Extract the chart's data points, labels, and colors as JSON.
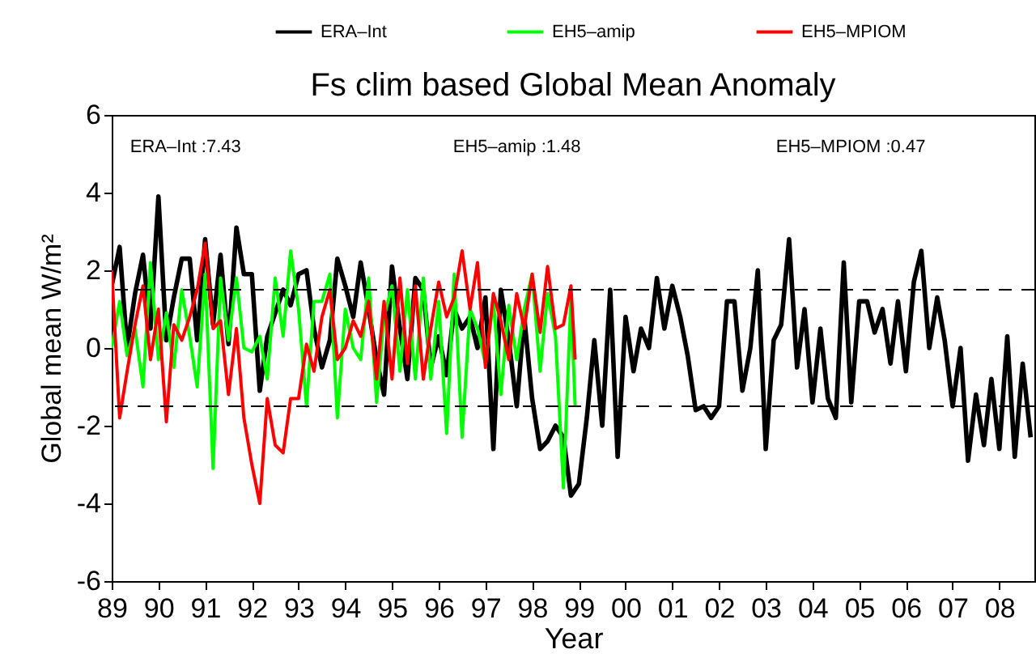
{
  "chart_data": {
    "type": "line",
    "title": "Fs clim based Global Mean Anomaly",
    "xlabel": "Year",
    "ylabel": "Global mean W/m²",
    "annotations": [
      "ERA–Int :7.43",
      "EH5–amip :1.48",
      "EH5–MPIOM :0.47"
    ],
    "xlim": [
      1989,
      2008.75
    ],
    "ylim": [
      -6,
      6
    ],
    "xticks": [
      {
        "value": 1989,
        "label": "89"
      },
      {
        "value": 1990,
        "label": "90"
      },
      {
        "value": 1991,
        "label": "91"
      },
      {
        "value": 1992,
        "label": "92"
      },
      {
        "value": 1993,
        "label": "93"
      },
      {
        "value": 1994,
        "label": "94"
      },
      {
        "value": 1995,
        "label": "95"
      },
      {
        "value": 1996,
        "label": "96"
      },
      {
        "value": 1997,
        "label": "97"
      },
      {
        "value": 1998,
        "label": "98"
      },
      {
        "value": 1999,
        "label": "99"
      },
      {
        "value": 2000,
        "label": "00"
      },
      {
        "value": 2001,
        "label": "01"
      },
      {
        "value": 2002,
        "label": "02"
      },
      {
        "value": 2003,
        "label": "03"
      },
      {
        "value": 2004,
        "label": "04"
      },
      {
        "value": 2005,
        "label": "05"
      },
      {
        "value": 2006,
        "label": "06"
      },
      {
        "value": 2007,
        "label": "07"
      },
      {
        "value": 2008,
        "label": "08"
      }
    ],
    "yticks": [
      -6,
      -4,
      -2,
      0,
      2,
      4,
      6
    ],
    "grid": false,
    "legend": "top",
    "marker": "none",
    "line_style": "solid",
    "ref_lines": [
      {
        "axis": "y",
        "value": 1.5,
        "color": "#000000",
        "line_style": "dashed"
      },
      {
        "axis": "y",
        "value": -1.5,
        "color": "#000000",
        "line_style": "dashed"
      }
    ],
    "series": [
      {
        "name": "ERA–Int",
        "color": "#000000",
        "x": [
          1989,
          1989.17,
          1989.33,
          1989.5,
          1989.67,
          1989.83,
          1990,
          1990.17,
          1990.33,
          1990.5,
          1990.67,
          1990.83,
          1991,
          1991.17,
          1991.33,
          1991.5,
          1991.67,
          1991.83,
          1992,
          1992.17,
          1992.33,
          1992.5,
          1992.67,
          1992.83,
          1993,
          1993.17,
          1993.33,
          1993.5,
          1993.67,
          1993.83,
          1994,
          1994.17,
          1994.33,
          1994.5,
          1994.67,
          1994.83,
          1995,
          1995.17,
          1995.33,
          1995.5,
          1995.67,
          1995.83,
          1996,
          1996.17,
          1996.33,
          1996.5,
          1996.67,
          1996.83,
          1997,
          1997.17,
          1997.33,
          1997.5,
          1997.67,
          1997.83,
          1998,
          1998.17,
          1998.33,
          1998.5,
          1998.67,
          1998.83,
          1999,
          1999.17,
          1999.33,
          1999.5,
          1999.67,
          1999.83,
          2000,
          2000.17,
          2000.33,
          2000.5,
          2000.67,
          2000.83,
          2001,
          2001.17,
          2001.33,
          2001.5,
          2001.67,
          2001.83,
          2002,
          2002.17,
          2002.33,
          2002.5,
          2002.67,
          2002.83,
          2003,
          2003.17,
          2003.33,
          2003.5,
          2003.67,
          2003.83,
          2004,
          2004.17,
          2004.33,
          2004.5,
          2004.67,
          2004.83,
          2005,
          2005.17,
          2005.33,
          2005.5,
          2005.67,
          2005.83,
          2006,
          2006.17,
          2006.33,
          2006.5,
          2006.67,
          2006.83,
          2007,
          2007.17,
          2007.33,
          2007.5,
          2007.67,
          2007.83,
          2008,
          2008.17,
          2008.33,
          2008.5,
          2008.67
        ],
        "values": [
          1.6,
          2.6,
          0.0,
          1.4,
          2.4,
          0.5,
          3.9,
          0.2,
          1.3,
          2.3,
          2.3,
          0.2,
          2.8,
          0.6,
          2.4,
          0.1,
          3.1,
          1.9,
          1.9,
          -1.1,
          0.3,
          0.9,
          1.5,
          1.1,
          1.9,
          2.0,
          0.5,
          -0.5,
          0.2,
          2.3,
          1.6,
          0.8,
          2.2,
          1.0,
          -0.3,
          -1.2,
          2.1,
          0.5,
          -0.8,
          1.8,
          1.5,
          -0.5,
          0.3,
          -0.7,
          1.0,
          0.5,
          0.8,
          0.0,
          1.3,
          -2.6,
          1.5,
          0.2,
          -1.5,
          0.8,
          -1.3,
          -2.6,
          -2.4,
          -2.0,
          -2.3,
          -3.8,
          -3.5,
          -1.8,
          0.2,
          -2.0,
          1.5,
          -2.8,
          0.8,
          -0.6,
          0.5,
          0.0,
          1.8,
          0.5,
          1.6,
          0.8,
          -0.2,
          -1.6,
          -1.5,
          -1.8,
          -1.5,
          1.2,
          1.2,
          -1.1,
          0.0,
          2.0,
          -2.6,
          0.2,
          0.6,
          2.8,
          -0.5,
          1.0,
          -1.4,
          0.5,
          -1.3,
          -1.8,
          2.2,
          -1.4,
          1.2,
          1.2,
          0.4,
          1.0,
          -0.4,
          1.2,
          -0.6,
          1.7,
          2.5,
          0.0,
          1.3,
          0.2,
          -1.5,
          0.0,
          -2.9,
          -1.2,
          -2.5,
          -0.8,
          -2.6,
          0.3,
          -2.8,
          -0.4,
          -2.3
        ]
      },
      {
        "name": "EH5–amip",
        "color": "#00ff00",
        "x": [
          1989,
          1989.17,
          1989.33,
          1989.5,
          1989.67,
          1989.83,
          1990,
          1990.17,
          1990.33,
          1990.5,
          1990.67,
          1990.83,
          1991,
          1991.17,
          1991.33,
          1991.5,
          1991.67,
          1991.83,
          1992,
          1992.17,
          1992.33,
          1992.5,
          1992.67,
          1992.83,
          1993,
          1993.17,
          1993.33,
          1993.5,
          1993.67,
          1993.83,
          1994,
          1994.17,
          1994.33,
          1994.5,
          1994.67,
          1994.83,
          1995,
          1995.17,
          1995.33,
          1995.5,
          1995.67,
          1995.83,
          1996,
          1996.17,
          1996.33,
          1996.5,
          1996.67,
          1996.83,
          1997,
          1997.17,
          1997.33,
          1997.5,
          1997.67,
          1997.83,
          1998,
          1998.17,
          1998.33,
          1998.5,
          1998.67,
          1998.83,
          1998.92
        ],
        "values": [
          0.0,
          1.2,
          -0.2,
          0.5,
          -1.0,
          2.2,
          -0.3,
          0.9,
          -0.5,
          1.5,
          0.3,
          -1.0,
          1.9,
          -3.1,
          1.8,
          0.2,
          1.8,
          0.0,
          -0.1,
          0.3,
          -0.8,
          1.8,
          0.3,
          2.5,
          1.0,
          -1.5,
          1.2,
          1.2,
          1.9,
          -1.8,
          1.0,
          0.0,
          -0.3,
          1.8,
          -1.4,
          0.8,
          1.6,
          -0.6,
          1.5,
          -0.8,
          1.8,
          -0.8,
          1.2,
          -2.2,
          1.9,
          -2.3,
          1.0,
          0.5,
          -0.4,
          1.2,
          -1.2,
          1.1,
          -0.3,
          1.0,
          1.9,
          -0.6,
          1.4,
          0.3,
          -3.6,
          1.3,
          -1.5
        ]
      },
      {
        "name": "EH5–MPIOM",
        "color": "#ff0000",
        "x": [
          1989,
          1989.17,
          1989.33,
          1989.5,
          1989.67,
          1989.83,
          1990,
          1990.17,
          1990.33,
          1990.5,
          1990.67,
          1990.83,
          1991,
          1991.17,
          1991.33,
          1991.5,
          1991.67,
          1991.83,
          1992,
          1992.17,
          1992.33,
          1992.5,
          1992.67,
          1992.83,
          1993,
          1993.17,
          1993.33,
          1993.5,
          1993.67,
          1993.83,
          1994,
          1994.17,
          1994.33,
          1994.5,
          1994.67,
          1994.83,
          1995,
          1995.17,
          1995.33,
          1995.5,
          1995.67,
          1995.83,
          1996,
          1996.17,
          1996.33,
          1996.5,
          1996.67,
          1996.83,
          1997,
          1997.17,
          1997.33,
          1997.5,
          1997.67,
          1997.83,
          1998,
          1998.17,
          1998.33,
          1998.5,
          1998.67,
          1998.83,
          1998.92
        ],
        "values": [
          2.0,
          -1.8,
          -0.6,
          0.6,
          1.6,
          -0.3,
          1.0,
          -1.9,
          0.6,
          0.2,
          0.8,
          1.5,
          2.7,
          0.5,
          0.7,
          -1.2,
          0.5,
          -1.8,
          -3.0,
          -4.0,
          -1.3,
          -2.5,
          -2.7,
          -1.3,
          -1.3,
          0.1,
          -0.6,
          0.8,
          1.5,
          -0.3,
          0.0,
          0.7,
          0.3,
          1.2,
          -0.8,
          1.2,
          -0.8,
          1.8,
          -0.4,
          1.6,
          -0.8,
          0.5,
          1.7,
          0.8,
          1.3,
          2.5,
          1.0,
          2.2,
          -0.5,
          1.4,
          0.7,
          -0.3,
          1.4,
          0.5,
          1.9,
          0.4,
          2.1,
          0.5,
          0.6,
          1.6,
          -0.3
        ]
      }
    ]
  }
}
